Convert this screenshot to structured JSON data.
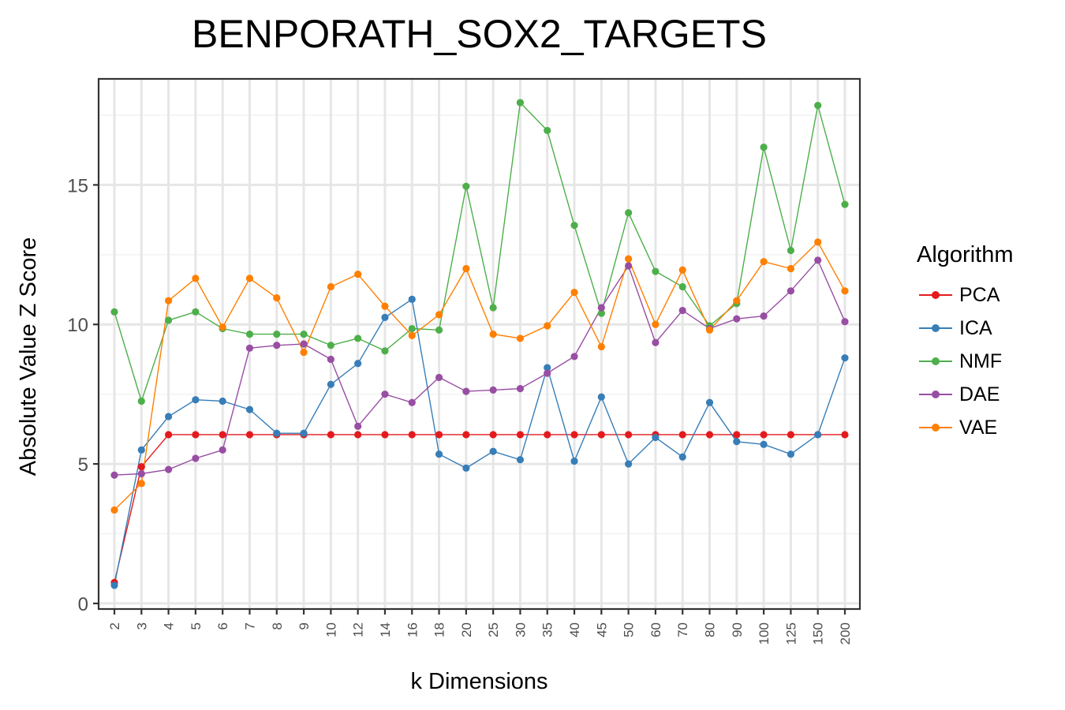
{
  "chart_data": {
    "type": "line",
    "title": "BENPORATH_SOX2_TARGETS",
    "xlabel": "k Dimensions",
    "ylabel": "Absolute Value Z Score",
    "categories": [
      "2",
      "3",
      "4",
      "5",
      "6",
      "7",
      "8",
      "9",
      "10",
      "12",
      "14",
      "16",
      "18",
      "20",
      "25",
      "30",
      "35",
      "40",
      "45",
      "50",
      "60",
      "70",
      "80",
      "90",
      "100",
      "125",
      "150",
      "200"
    ],
    "y_ticks": [
      "0",
      "5",
      "10",
      "15"
    ],
    "ylim": [
      -0.2,
      18.8
    ],
    "grid": true,
    "legend_title": "Algorithm",
    "legend_position": "right",
    "series": [
      {
        "name": "PCA",
        "color": "#e41a1c",
        "values": [
          0.75,
          4.9,
          6.05,
          6.05,
          6.05,
          6.05,
          6.05,
          6.05,
          6.05,
          6.05,
          6.05,
          6.05,
          6.05,
          6.05,
          6.05,
          6.05,
          6.05,
          6.05,
          6.05,
          6.05,
          6.05,
          6.05,
          6.05,
          6.05,
          6.05,
          6.05,
          6.05,
          6.05
        ]
      },
      {
        "name": "ICA",
        "color": "#377eb8",
        "values": [
          0.65,
          5.5,
          6.7,
          7.3,
          7.25,
          6.95,
          6.1,
          6.1,
          7.85,
          8.6,
          10.25,
          10.9,
          5.35,
          4.85,
          5.45,
          5.15,
          8.45,
          5.1,
          7.4,
          5.0,
          5.95,
          5.25,
          7.2,
          5.8,
          5.7,
          5.35,
          6.05,
          8.8
        ]
      },
      {
        "name": "NMF",
        "color": "#4daf4a",
        "values": [
          10.45,
          7.25,
          10.15,
          10.45,
          9.85,
          9.65,
          9.65,
          9.65,
          9.25,
          9.5,
          9.05,
          9.85,
          9.8,
          14.95,
          10.6,
          17.95,
          16.95,
          13.55,
          10.4,
          14.0,
          11.9,
          11.35,
          9.95,
          10.75,
          16.35,
          12.65,
          17.85,
          14.3
        ]
      },
      {
        "name": "DAE",
        "color": "#984ea3",
        "values": [
          4.6,
          4.65,
          4.8,
          5.2,
          5.5,
          9.15,
          9.25,
          9.3,
          8.75,
          6.35,
          7.5,
          7.2,
          8.1,
          7.6,
          7.65,
          7.7,
          8.25,
          8.85,
          10.6,
          12.1,
          9.35,
          10.5,
          9.85,
          10.2,
          10.3,
          11.2,
          12.3,
          10.1
        ]
      },
      {
        "name": "VAE",
        "color": "#ff7f00",
        "values": [
          3.35,
          4.3,
          10.85,
          11.65,
          9.9,
          11.65,
          10.95,
          9.0,
          11.35,
          11.8,
          10.65,
          9.6,
          10.35,
          12.0,
          9.65,
          9.5,
          9.95,
          11.15,
          9.2,
          12.35,
          10.0,
          11.95,
          9.8,
          10.85,
          12.25,
          12.0,
          12.95,
          11.2
        ]
      }
    ]
  }
}
